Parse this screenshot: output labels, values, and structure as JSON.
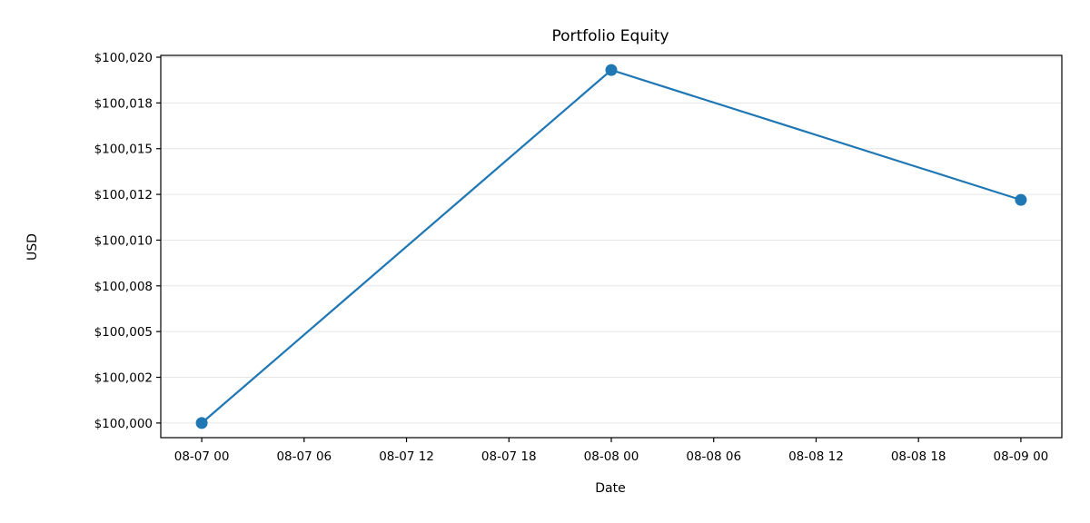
{
  "chart_data": {
    "type": "line",
    "title": "Portfolio Equity",
    "xlabel": "Date",
    "ylabel": "USD",
    "x": [
      "2024-08-07T00:00",
      "2024-08-08T00:00",
      "2024-08-09T00:00"
    ],
    "series": [
      {
        "values": [
          100000.0,
          100019.3,
          100012.2
        ]
      }
    ],
    "x_ticks": [
      "08-07 00",
      "08-07 06",
      "08-07 12",
      "08-07 18",
      "08-08 00",
      "08-08 06",
      "08-08 12",
      "08-08 18",
      "08-09 00"
    ],
    "xlim": [
      "2024-08-06T21:36",
      "2024-08-09T02:24"
    ],
    "y_ticks": [
      100000,
      100002.5,
      100005,
      100007.5,
      100010,
      100012.5,
      100015,
      100017.5,
      100020
    ],
    "y_tick_labels": [
      "$100,000",
      "$100,002",
      "$100,005",
      "$100,008",
      "$100,010",
      "$100,012",
      "$100,015",
      "$100,018",
      "$100,020"
    ],
    "ylim": [
      99999.2,
      100020.1
    ],
    "grid": "horizontal",
    "line_color": "#1f77b4"
  }
}
